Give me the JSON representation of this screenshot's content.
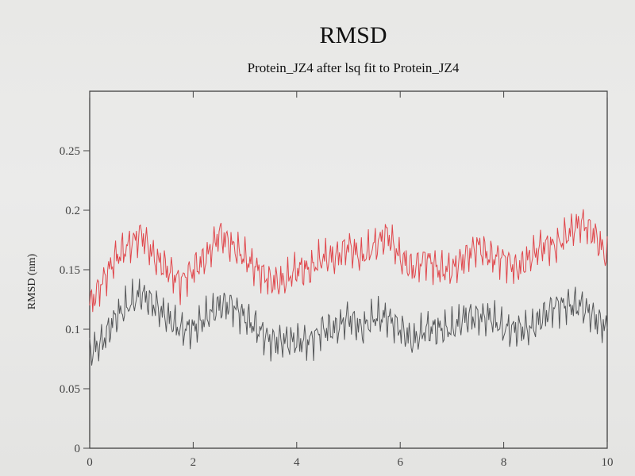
{
  "chart_data": {
    "type": "line",
    "title": "RMSD",
    "subtitle": "Protein_JZ4 after lsq fit to Protein_JZ4",
    "xlabel": "",
    "ylabel": "RMSD (nm)",
    "xlim": [
      0,
      10
    ],
    "ylim": [
      0,
      0.3
    ],
    "x_ticks": [
      "0",
      "2",
      "4",
      "6",
      "8",
      "10"
    ],
    "y_ticks": [
      "0",
      "0.05",
      "0.1",
      "0.15",
      "0.2",
      "0.25"
    ],
    "grid": false,
    "legend": "none",
    "series": [
      {
        "color": "#e0474c",
        "x": [
          0,
          0.25,
          0.5,
          0.75,
          1,
          1.25,
          1.5,
          1.75,
          2,
          2.25,
          2.5,
          2.75,
          3,
          3.25,
          3.5,
          3.75,
          4,
          4.25,
          4.5,
          4.75,
          5,
          5.25,
          5.5,
          5.75,
          6,
          6.25,
          6.5,
          6.75,
          7,
          7.25,
          7.5,
          7.75,
          8,
          8.25,
          8.5,
          8.75,
          9,
          9.25,
          9.5,
          9.75,
          10
        ],
        "values": [
          0.12,
          0.14,
          0.16,
          0.17,
          0.18,
          0.16,
          0.15,
          0.14,
          0.15,
          0.16,
          0.18,
          0.17,
          0.16,
          0.15,
          0.14,
          0.14,
          0.15,
          0.15,
          0.16,
          0.16,
          0.17,
          0.16,
          0.17,
          0.18,
          0.16,
          0.15,
          0.16,
          0.15,
          0.15,
          0.16,
          0.17,
          0.16,
          0.16,
          0.15,
          0.16,
          0.17,
          0.17,
          0.18,
          0.19,
          0.18,
          0.16
        ]
      },
      {
        "color": "#555759",
        "x": [
          0,
          0.25,
          0.5,
          0.75,
          1,
          1.25,
          1.5,
          1.75,
          2,
          2.25,
          2.5,
          2.75,
          3,
          3.25,
          3.5,
          3.75,
          4,
          4.25,
          4.5,
          4.75,
          5,
          5.25,
          5.5,
          5.75,
          6,
          6.25,
          6.5,
          6.75,
          7,
          7.25,
          7.5,
          7.75,
          8,
          8.25,
          8.5,
          8.75,
          9,
          9.25,
          9.5,
          9.75,
          10
        ],
        "values": [
          0.08,
          0.09,
          0.11,
          0.12,
          0.13,
          0.12,
          0.11,
          0.1,
          0.1,
          0.11,
          0.12,
          0.12,
          0.11,
          0.1,
          0.09,
          0.09,
          0.09,
          0.09,
          0.1,
          0.1,
          0.11,
          0.1,
          0.11,
          0.11,
          0.1,
          0.09,
          0.1,
          0.1,
          0.1,
          0.11,
          0.11,
          0.11,
          0.1,
          0.1,
          0.1,
          0.11,
          0.12,
          0.12,
          0.12,
          0.11,
          0.1
        ]
      }
    ]
  }
}
